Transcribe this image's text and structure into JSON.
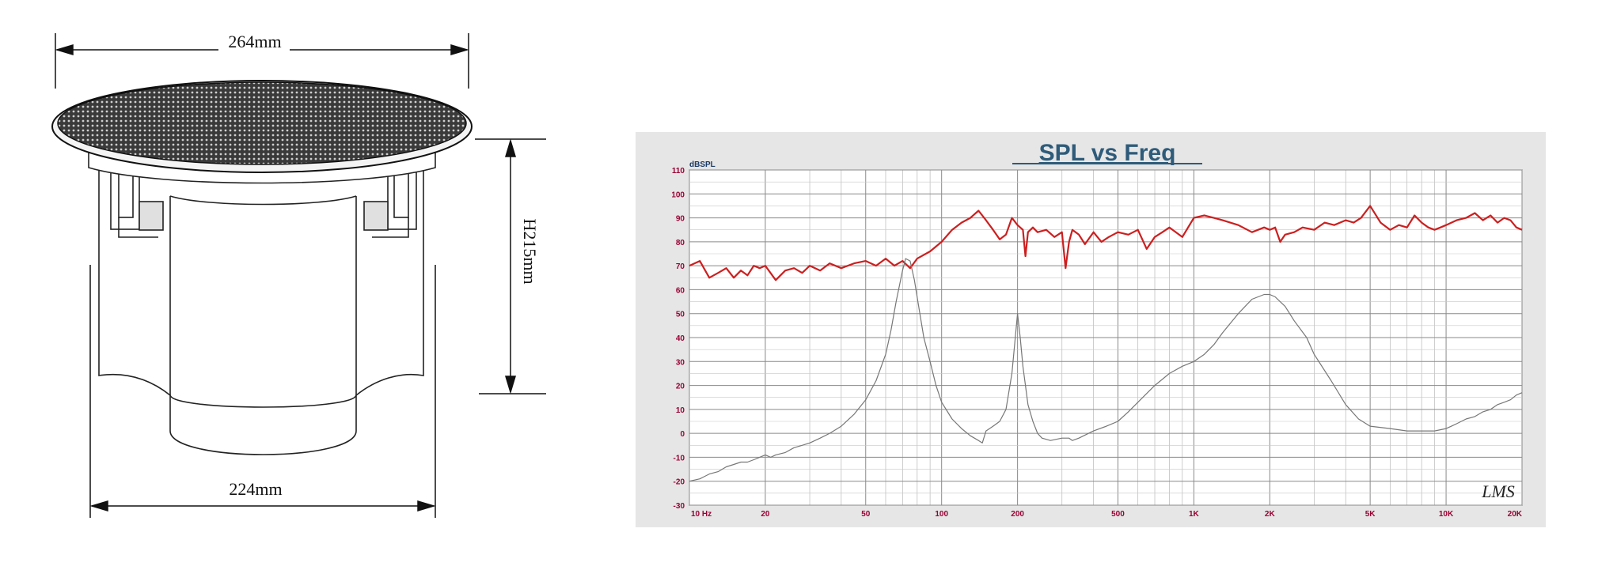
{
  "drawing": {
    "top_width": "264mm",
    "bottom_width": "224mm",
    "height": "H215mm"
  },
  "chart_data": {
    "type": "line",
    "title": "SPL vs Freq",
    "ylabel": "dBSPL",
    "xscale": "log",
    "xlim": [
      10,
      20000
    ],
    "ylim": [
      -30,
      110
    ],
    "yticks": [
      110,
      100,
      90,
      80,
      70,
      60,
      50,
      40,
      30,
      20,
      10,
      0,
      -10,
      -20,
      -30
    ],
    "xticks": [
      {
        "v": 10,
        "label": "10 Hz"
      },
      {
        "v": 20,
        "label": "20"
      },
      {
        "v": 50,
        "label": "50"
      },
      {
        "v": 100,
        "label": "100"
      },
      {
        "v": 200,
        "label": "200"
      },
      {
        "v": 500,
        "label": "500"
      },
      {
        "v": 1000,
        "label": "1K"
      },
      {
        "v": 2000,
        "label": "2K"
      },
      {
        "v": 5000,
        "label": "5K"
      },
      {
        "v": 10000,
        "label": "10K"
      },
      {
        "v": 20000,
        "label": "20K"
      }
    ],
    "grid": true,
    "logo": "LMS",
    "series": [
      {
        "color": "#cc1f1f",
        "x": [
          10,
          11,
          12,
          13,
          14,
          15,
          16,
          17,
          18,
          19,
          20,
          22,
          24,
          26,
          28,
          30,
          33,
          36,
          40,
          45,
          50,
          55,
          60,
          65,
          70,
          75,
          80,
          90,
          100,
          110,
          120,
          130,
          140,
          150,
          160,
          170,
          180,
          190,
          200,
          210,
          215,
          220,
          230,
          240,
          260,
          280,
          300,
          310,
          320,
          330,
          350,
          370,
          400,
          430,
          460,
          500,
          550,
          600,
          650,
          700,
          750,
          800,
          900,
          1000,
          1100,
          1200,
          1300,
          1500,
          1700,
          1900,
          2000,
          2100,
          2200,
          2300,
          2500,
          2700,
          3000,
          3300,
          3600,
          4000,
          4300,
          4600,
          5000,
          5500,
          6000,
          6500,
          7000,
          7500,
          8000,
          8500,
          9000,
          9500,
          10000,
          11000,
          12000,
          13000,
          14000,
          15000,
          16000,
          17000,
          18000,
          19000,
          20000
        ],
        "y": [
          70,
          72,
          65,
          67,
          69,
          65,
          68,
          66,
          70,
          69,
          70,
          64,
          68,
          69,
          67,
          70,
          68,
          71,
          69,
          71,
          72,
          70,
          73,
          70,
          72,
          69,
          73,
          76,
          80,
          85,
          88,
          90,
          93,
          89,
          85,
          81,
          83,
          90,
          87,
          85,
          74,
          84,
          86,
          84,
          85,
          82,
          84,
          69,
          80,
          85,
          83,
          79,
          84,
          80,
          82,
          84,
          83,
          85,
          77,
          82,
          84,
          86,
          82,
          90,
          91,
          90,
          89,
          87,
          84,
          86,
          85,
          86,
          80,
          83,
          84,
          86,
          85,
          88,
          87,
          89,
          88,
          90,
          95,
          88,
          85,
          87,
          86,
          91,
          88,
          86,
          85,
          86,
          87,
          89,
          90,
          92,
          89,
          91,
          88,
          90,
          89,
          86,
          85
        ]
      },
      {
        "color": "#777777",
        "x": [
          10,
          11,
          12,
          13,
          14,
          15,
          16,
          17,
          18,
          19,
          20,
          21,
          22,
          24,
          26,
          28,
          30,
          33,
          36,
          40,
          45,
          50,
          55,
          60,
          63,
          66,
          70,
          72,
          75,
          78,
          82,
          85,
          90,
          95,
          100,
          110,
          120,
          130,
          140,
          145,
          150,
          160,
          170,
          180,
          190,
          200,
          205,
          210,
          220,
          230,
          240,
          250,
          270,
          300,
          320,
          330,
          350,
          400,
          450,
          500,
          550,
          600,
          700,
          800,
          900,
          1000,
          1100,
          1200,
          1300,
          1500,
          1700,
          1900,
          2000,
          2100,
          2300,
          2500,
          2800,
          3000,
          3500,
          4000,
          4500,
          5000,
          6000,
          7000,
          8000,
          9000,
          10000,
          10500,
          11000,
          12000,
          13000,
          14000,
          15000,
          16000,
          17000,
          18000,
          19000,
          20000
        ],
        "y": [
          -20,
          -19,
          -17,
          -16,
          -14,
          -13,
          -12,
          -12,
          -11,
          -10,
          -9,
          -10,
          -9,
          -8,
          -6,
          -5,
          -4,
          -2,
          0,
          3,
          8,
          14,
          22,
          33,
          43,
          55,
          68,
          73,
          72,
          64,
          50,
          40,
          30,
          20,
          13,
          6,
          2,
          -1,
          -3,
          -4,
          1,
          3,
          5,
          10,
          25,
          50,
          40,
          28,
          12,
          5,
          0,
          -2,
          -3,
          -2,
          -2,
          -3,
          -2,
          1,
          3,
          5,
          9,
          13,
          20,
          25,
          28,
          30,
          33,
          37,
          42,
          50,
          56,
          58,
          58,
          57,
          53,
          47,
          40,
          33,
          22,
          12,
          6,
          3,
          2,
          1,
          1,
          1,
          2,
          3,
          4,
          6,
          7,
          9,
          10,
          12,
          13,
          14,
          16,
          17
        ]
      }
    ]
  }
}
